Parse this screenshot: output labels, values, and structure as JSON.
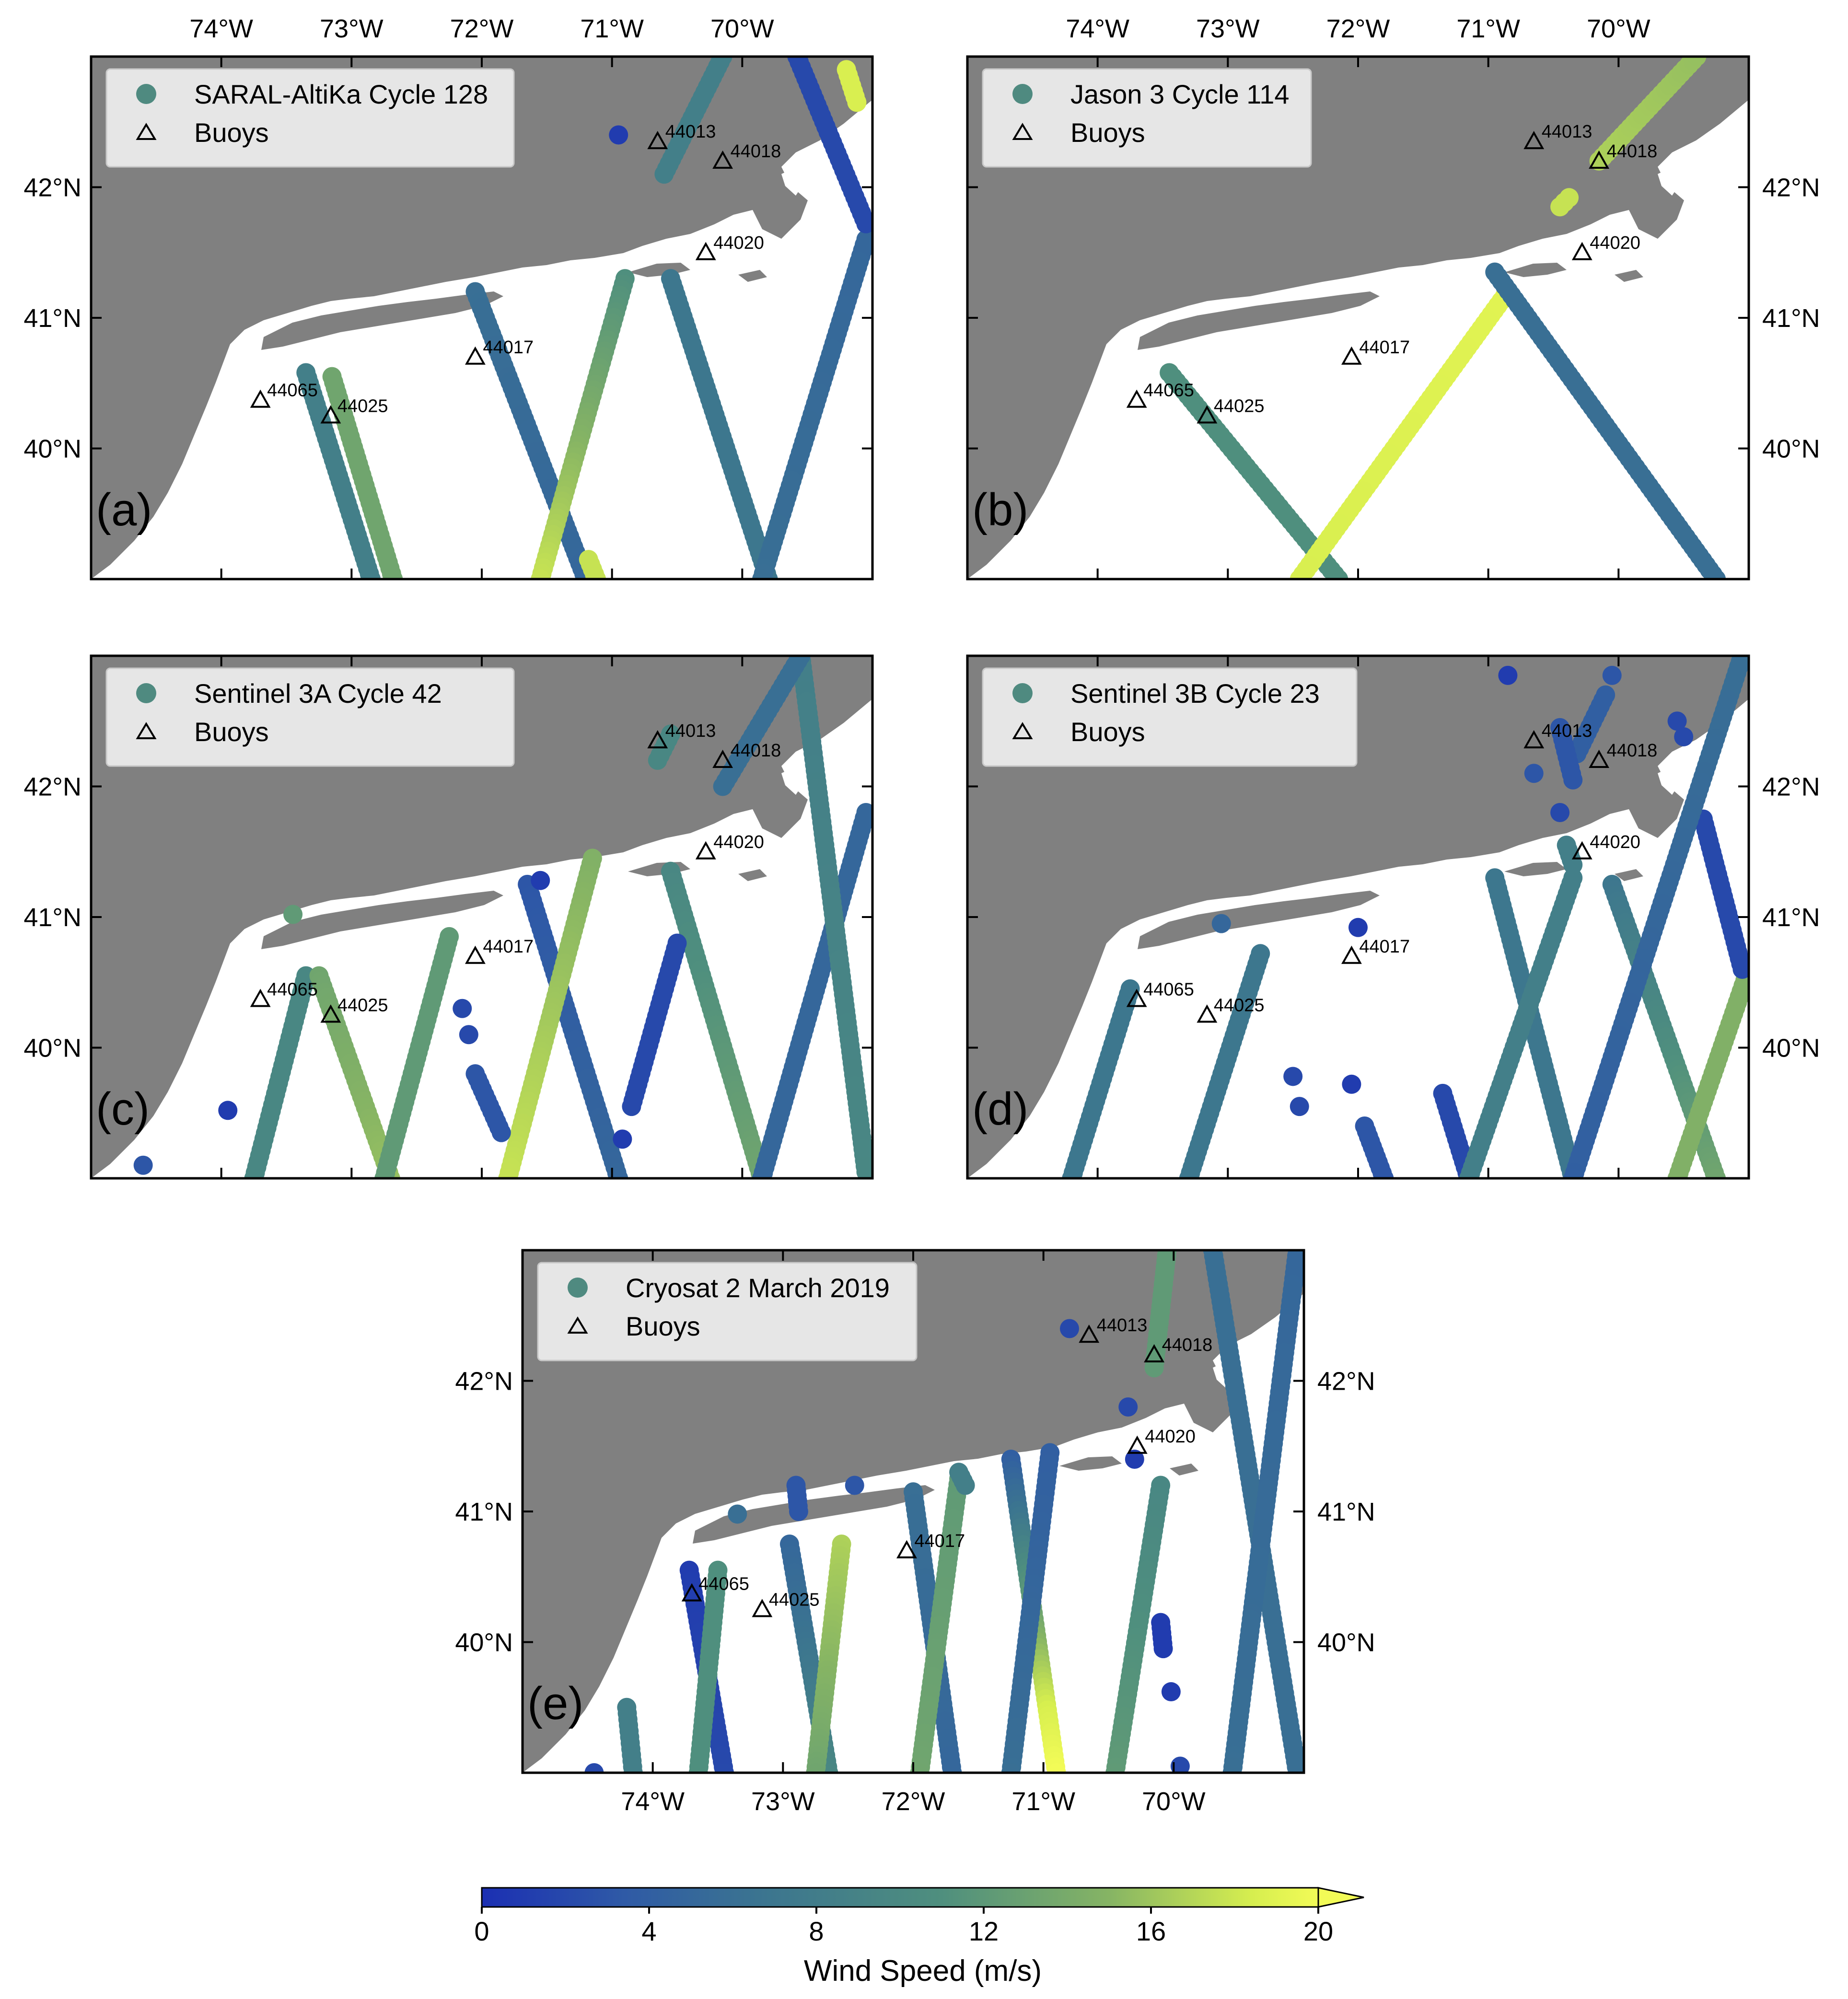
{
  "colors": {
    "land": "#808080",
    "ocean": "#ffffff",
    "frame": "#000000",
    "legend_bg": "#e6e6e6",
    "legend_marker": "#4f8a80",
    "colormap": [
      "#1b2fb3",
      "#2f5aa6",
      "#3b7490",
      "#4f8f7e",
      "#86b464",
      "#d6ee4f",
      "#f2fb57"
    ]
  },
  "map_extent": {
    "lon_min": -75.0,
    "lon_max": -69.0,
    "lat_min": 39.0,
    "lat_max": 43.0
  },
  "axes": {
    "lon_ticks": [
      {
        "value": -74,
        "label": "74°W"
      },
      {
        "value": -73,
        "label": "73°W"
      },
      {
        "value": -72,
        "label": "72°W"
      },
      {
        "value": -71,
        "label": "71°W"
      },
      {
        "value": -70,
        "label": "70°W"
      }
    ],
    "lat_ticks": [
      {
        "value": 40,
        "label": "40°N"
      },
      {
        "value": 41,
        "label": "41°N"
      },
      {
        "value": 42,
        "label": "42°N"
      }
    ]
  },
  "buoys": [
    {
      "id": "44013",
      "lon": -70.65,
      "lat": 42.35
    },
    {
      "id": "44018",
      "lon": -70.15,
      "lat": 42.2
    },
    {
      "id": "44020",
      "lon": -70.28,
      "lat": 41.5
    },
    {
      "id": "44017",
      "lon": -72.05,
      "lat": 40.7
    },
    {
      "id": "44065",
      "lon": -73.7,
      "lat": 40.37
    },
    {
      "id": "44025",
      "lon": -73.16,
      "lat": 40.25
    }
  ],
  "panels": [
    {
      "letter": "(a)",
      "legend_label": "SARAL-AltiKa Cycle 128",
      "legend_buoys": "Buoys",
      "tracks": [
        {
          "from": [
            -73.35,
            40.58
          ],
          "to": [
            -72.85,
            39.0
          ],
          "w_from": 8,
          "w_to": 8
        },
        {
          "from": [
            -73.15,
            40.55
          ],
          "to": [
            -72.68,
            39.0
          ],
          "w_from": 12,
          "w_to": 12
        },
        {
          "from": [
            -72.05,
            41.2
          ],
          "to": [
            -71.2,
            39.0
          ],
          "w_from": 6,
          "w_to": 5
        },
        {
          "from": [
            -70.9,
            41.3
          ],
          "to": [
            -71.55,
            39.0
          ],
          "w_from": 10,
          "w_to": 16
        },
        {
          "from": [
            -71.18,
            39.15
          ],
          "to": [
            -71.12,
            39.0
          ],
          "w_from": 16,
          "w_to": 16
        },
        {
          "from": [
            -70.55,
            41.3
          ],
          "to": [
            -69.8,
            39.0
          ],
          "w_from": 7,
          "w_to": 7
        },
        {
          "from": [
            -69.05,
            41.6
          ],
          "to": [
            -69.85,
            39.0
          ],
          "w_from": 5,
          "w_to": 6
        },
        {
          "from": [
            -69.58,
            43.0
          ],
          "to": [
            -69.05,
            41.72
          ],
          "w_from": 2,
          "w_to": 2
        },
        {
          "from": [
            -69.2,
            42.9
          ],
          "to": [
            -69.12,
            42.65
          ],
          "w_from": 17,
          "w_to": 17
        },
        {
          "from": [
            -70.6,
            42.1
          ],
          "to": [
            -70.15,
            43.0
          ],
          "w_from": 8,
          "w_to": 8
        }
      ],
      "dots": [
        {
          "lon": -70.95,
          "lat": 42.4,
          "w": 1
        }
      ]
    },
    {
      "letter": "(b)",
      "legend_label": "Jason 3 Cycle 114",
      "legend_buoys": "Buoys",
      "tracks": [
        {
          "from": [
            -73.45,
            40.58
          ],
          "to": [
            -72.15,
            39.0
          ],
          "w_from": 10,
          "w_to": 10
        },
        {
          "from": [
            -70.85,
            41.2
          ],
          "to": [
            -72.45,
            39.0
          ],
          "w_from": 18,
          "w_to": 17
        },
        {
          "from": [
            -70.95,
            41.35
          ],
          "to": [
            -69.25,
            39.0
          ],
          "w_from": 6,
          "w_to": 6
        },
        {
          "from": [
            -70.15,
            42.2
          ],
          "to": [
            -69.4,
            43.0
          ],
          "w_from": 15,
          "w_to": 14
        },
        {
          "from": [
            -70.45,
            41.85
          ],
          "to": [
            -70.38,
            41.92
          ],
          "w_from": 16,
          "w_to": 16
        }
      ],
      "dots": []
    },
    {
      "letter": "(c)",
      "legend_label": "Sentinel 3A Cycle 42",
      "legend_buoys": "Buoys",
      "tracks": [
        {
          "from": [
            -73.35,
            40.55
          ],
          "to": [
            -73.75,
            39.0
          ],
          "w_from": 9,
          "w_to": 9
        },
        {
          "from": [
            -73.25,
            40.55
          ],
          "to": [
            -72.7,
            39.0
          ],
          "w_from": 12,
          "w_to": 14
        },
        {
          "from": [
            -72.25,
            40.85
          ],
          "to": [
            -72.75,
            39.0
          ],
          "w_from": 11,
          "w_to": 11
        },
        {
          "from": [
            -71.65,
            41.25
          ],
          "to": [
            -70.95,
            39.0
          ],
          "w_from": 3,
          "w_to": 5
        },
        {
          "from": [
            -71.15,
            41.45
          ],
          "to": [
            -71.8,
            39.0
          ],
          "w_from": 13,
          "w_to": 16
        },
        {
          "from": [
            -70.55,
            41.35
          ],
          "to": [
            -69.85,
            39.0
          ],
          "w_from": 9,
          "w_to": 12
        },
        {
          "from": [
            -69.05,
            41.8
          ],
          "to": [
            -69.85,
            39.0
          ],
          "w_from": 5,
          "w_to": 5
        },
        {
          "from": [
            -69.55,
            43.0
          ],
          "to": [
            -69.05,
            39.05
          ],
          "w_from": 8,
          "w_to": 9
        },
        {
          "from": [
            -70.15,
            42.0
          ],
          "to": [
            -69.55,
            43.0
          ],
          "w_from": 6,
          "w_to": 6
        },
        {
          "from": [
            -70.65,
            42.2
          ],
          "to": [
            -70.55,
            42.4
          ],
          "w_from": 9,
          "w_to": 9
        },
        {
          "from": [
            -72.05,
            39.8
          ],
          "to": [
            -71.85,
            39.35
          ],
          "w_from": 3,
          "w_to": 3
        },
        {
          "from": [
            -70.5,
            40.8
          ],
          "to": [
            -70.85,
            39.55
          ],
          "w_from": 2,
          "w_to": 2
        }
      ],
      "dots": [
        {
          "lon": -73.45,
          "lat": 41.02,
          "w": 11
        },
        {
          "lon": -71.55,
          "lat": 41.28,
          "w": 1
        },
        {
          "lon": -72.15,
          "lat": 40.3,
          "w": 2
        },
        {
          "lon": -72.1,
          "lat": 40.1,
          "w": 2
        },
        {
          "lon": -73.95,
          "lat": 39.52,
          "w": 1
        },
        {
          "lon": -74.6,
          "lat": 39.1,
          "w": 3
        },
        {
          "lon": -70.92,
          "lat": 39.3,
          "w": 1
        }
      ]
    },
    {
      "letter": "(d)",
      "legend_label": "Sentinel 3B Cycle 23",
      "legend_buoys": "Buoys",
      "tracks": [
        {
          "from": [
            -73.75,
            40.45
          ],
          "to": [
            -74.2,
            39.0
          ],
          "w_from": 7,
          "w_to": 7
        },
        {
          "from": [
            -72.75,
            40.72
          ],
          "to": [
            -73.3,
            39.0
          ],
          "w_from": 7,
          "w_to": 7
        },
        {
          "from": [
            -71.95,
            39.4
          ],
          "to": [
            -71.8,
            39.0
          ],
          "w_from": 3,
          "w_to": 3
        },
        {
          "from": [
            -71.35,
            39.65
          ],
          "to": [
            -71.15,
            39.0
          ],
          "w_from": 2,
          "w_to": 2
        },
        {
          "from": [
            -70.95,
            41.3
          ],
          "to": [
            -70.35,
            39.0
          ],
          "w_from": 7,
          "w_to": 7
        },
        {
          "from": [
            -70.35,
            41.3
          ],
          "to": [
            -71.15,
            39.0
          ],
          "w_from": 8,
          "w_to": 8
        },
        {
          "from": [
            -70.05,
            41.25
          ],
          "to": [
            -69.25,
            39.0
          ],
          "w_from": 7,
          "w_to": 12
        },
        {
          "from": [
            -69.0,
            40.6
          ],
          "to": [
            -69.55,
            39.0
          ],
          "w_from": 13,
          "w_to": 13
        },
        {
          "from": [
            -69.35,
            41.75
          ],
          "to": [
            -69.05,
            40.6
          ],
          "w_from": 2,
          "w_to": 2
        },
        {
          "from": [
            -69.05,
            43.0
          ],
          "to": [
            -70.35,
            39.0
          ],
          "w_from": 6,
          "w_to": 4
        },
        {
          "from": [
            -70.1,
            42.7
          ],
          "to": [
            -70.32,
            42.25
          ],
          "w_from": 4,
          "w_to": 4
        },
        {
          "from": [
            -70.45,
            42.45
          ],
          "to": [
            -70.35,
            42.05
          ],
          "w_from": 3,
          "w_to": 3
        },
        {
          "from": [
            -70.4,
            41.55
          ],
          "to": [
            -70.35,
            41.4
          ],
          "w_from": 8,
          "w_to": 8
        }
      ],
      "dots": [
        {
          "lon": -70.85,
          "lat": 42.85,
          "w": 1
        },
        {
          "lon": -70.05,
          "lat": 42.85,
          "w": 3
        },
        {
          "lon": -69.55,
          "lat": 42.5,
          "w": 2
        },
        {
          "lon": -69.5,
          "lat": 42.38,
          "w": 2
        },
        {
          "lon": -70.45,
          "lat": 41.8,
          "w": 2
        },
        {
          "lon": -73.05,
          "lat": 40.95,
          "w": 5
        },
        {
          "lon": -72.0,
          "lat": 40.92,
          "w": 1
        },
        {
          "lon": -72.5,
          "lat": 39.78,
          "w": 2
        },
        {
          "lon": -72.45,
          "lat": 39.55,
          "w": 2
        },
        {
          "lon": -72.05,
          "lat": 39.72,
          "w": 1
        },
        {
          "lon": -70.65,
          "lat": 42.1,
          "w": 3
        }
      ]
    },
    {
      "letter": "(e)",
      "legend_label": "Cryosat 2 March 2019",
      "legend_buoys": "Buoys",
      "tracks": [
        {
          "from": [
            -73.72,
            40.55
          ],
          "to": [
            -73.45,
            39.0
          ],
          "w_from": 1,
          "w_to": 2
        },
        {
          "from": [
            -73.5,
            40.55
          ],
          "to": [
            -73.65,
            39.0
          ],
          "w_from": 10,
          "w_to": 10
        },
        {
          "from": [
            -74.2,
            39.5
          ],
          "to": [
            -74.15,
            39.0
          ],
          "w_from": 8,
          "w_to": 8
        },
        {
          "from": [
            -72.95,
            40.75
          ],
          "to": [
            -72.65,
            39.0
          ],
          "w_from": 5,
          "w_to": 9
        },
        {
          "from": [
            -72.55,
            40.75
          ],
          "to": [
            -72.75,
            39.0
          ],
          "w_from": 15,
          "w_to": 12
        },
        {
          "from": [
            -72.0,
            41.15
          ],
          "to": [
            -71.7,
            39.0
          ],
          "w_from": 6,
          "w_to": 5
        },
        {
          "from": [
            -71.65,
            41.25
          ],
          "to": [
            -71.95,
            39.0
          ],
          "w_from": 11,
          "w_to": 12
        },
        {
          "from": [
            -71.25,
            41.4
          ],
          "to": [
            -70.9,
            39.0
          ],
          "w_from": 4,
          "w_to": 20
        },
        {
          "from": [
            -70.95,
            41.45
          ],
          "to": [
            -71.25,
            39.0
          ],
          "w_from": 4,
          "w_to": 6
        },
        {
          "from": [
            -70.1,
            41.2
          ],
          "to": [
            -70.45,
            39.0
          ],
          "w_from": 9,
          "w_to": 11
        },
        {
          "from": [
            -70.05,
            43.0
          ],
          "to": [
            -70.15,
            42.1
          ],
          "w_from": 11,
          "w_to": 11
        },
        {
          "from": [
            -69.7,
            43.0
          ],
          "to": [
            -69.05,
            39.0
          ],
          "w_from": 6,
          "w_to": 6
        },
        {
          "from": [
            -69.05,
            43.0
          ],
          "to": [
            -69.55,
            39.0
          ],
          "w_from": 5,
          "w_to": 6
        },
        {
          "from": [
            -71.65,
            41.3
          ],
          "to": [
            -71.6,
            41.2
          ],
          "w_from": 8,
          "w_to": 8
        },
        {
          "from": [
            -72.9,
            41.2
          ],
          "to": [
            -72.88,
            41.0
          ],
          "w_from": 3,
          "w_to": 3
        },
        {
          "from": [
            -70.1,
            40.15
          ],
          "to": [
            -70.08,
            39.95
          ],
          "w_from": 1,
          "w_to": 1
        }
      ],
      "dots": [
        {
          "lon": -70.8,
          "lat": 42.4,
          "w": 2
        },
        {
          "lon": -70.35,
          "lat": 41.8,
          "w": 2
        },
        {
          "lon": -70.3,
          "lat": 41.4,
          "w": 1
        },
        {
          "lon": -73.35,
          "lat": 40.98,
          "w": 6
        },
        {
          "lon": -72.45,
          "lat": 41.2,
          "w": 3
        },
        {
          "lon": -70.02,
          "lat": 39.62,
          "w": 1
        },
        {
          "lon": -69.95,
          "lat": 39.05,
          "w": 2
        },
        {
          "lon": -74.45,
          "lat": 39.0,
          "w": 2
        }
      ]
    }
  ],
  "colorbar": {
    "title": "Wind Speed (m/s)",
    "min": 0,
    "max": 20,
    "ticks": [
      {
        "value": 0,
        "label": "0"
      },
      {
        "value": 4,
        "label": "4"
      },
      {
        "value": 8,
        "label": "8"
      },
      {
        "value": 12,
        "label": "12"
      },
      {
        "value": 16,
        "label": "16"
      },
      {
        "value": 20,
        "label": "20"
      }
    ]
  }
}
